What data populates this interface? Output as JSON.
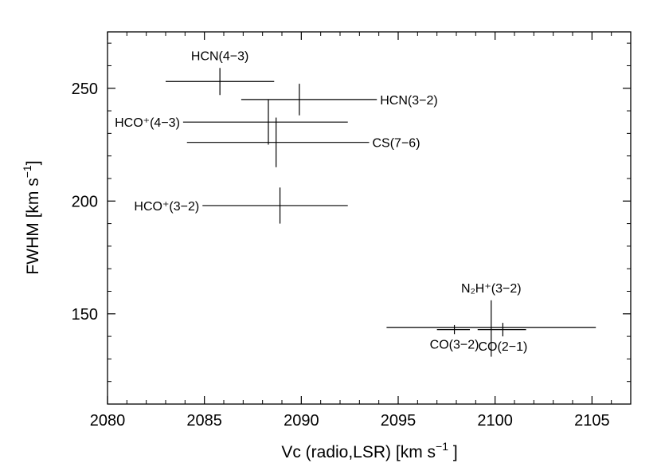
{
  "chart_data": {
    "type": "scatter",
    "title": "",
    "xlabel": "Vc (radio,LSR) [km s⁻¹]",
    "ylabel": "FWHM [km s⁻¹]",
    "xlim": [
      2080,
      2107
    ],
    "ylim": [
      110,
      275
    ],
    "xticks": [
      2080,
      2085,
      2090,
      2095,
      2100,
      2105
    ],
    "yticks": [
      150,
      200,
      250
    ],
    "grid": false,
    "points": [
      {
        "label": "HCN(4−3)",
        "x": 2085.8,
        "y": 253,
        "xerr_low": 2083.0,
        "xerr_high": 2088.6,
        "yerr_low": 247,
        "yerr_high": 259,
        "label_pos": "above"
      },
      {
        "label": "HCN(3−2)",
        "x": 2089.9,
        "y": 245,
        "xerr_low": 2086.9,
        "xerr_high": 2093.9,
        "yerr_low": 238,
        "yerr_high": 252,
        "label_pos": "right"
      },
      {
        "label": "HCO⁺(4−3)",
        "x": 2088.3,
        "y": 235,
        "xerr_low": 2083.9,
        "xerr_high": 2092.4,
        "yerr_low": 225,
        "yerr_high": 245,
        "label_pos": "left"
      },
      {
        "label": "CS(7−6)",
        "x": 2088.7,
        "y": 226,
        "xerr_low": 2084.1,
        "xerr_high": 2093.5,
        "yerr_low": 215,
        "yerr_high": 237,
        "label_pos": "right"
      },
      {
        "label": "HCO⁺(3−2)",
        "x": 2088.9,
        "y": 198,
        "xerr_low": 2084.9,
        "xerr_high": 2092.4,
        "yerr_low": 190,
        "yerr_high": 206,
        "label_pos": "left"
      },
      {
        "label": "N₂H⁺(3−2)",
        "x": 2099.8,
        "y": 144,
        "xerr_low": 2094.4,
        "xerr_high": 2105.2,
        "yerr_low": 131,
        "yerr_high": 156,
        "label_pos": "above"
      },
      {
        "label": "CO(3−2)",
        "x": 2097.9,
        "y": 143,
        "xerr_low": 2097.0,
        "xerr_high": 2098.7,
        "yerr_low": 141,
        "yerr_high": 145,
        "label_pos": "below"
      },
      {
        "label": "CO(2−1)",
        "x": 2100.4,
        "y": 143,
        "xerr_low": 2099.1,
        "xerr_high": 2101.6,
        "yerr_low": 140,
        "yerr_high": 146,
        "label_pos": "below"
      }
    ]
  }
}
